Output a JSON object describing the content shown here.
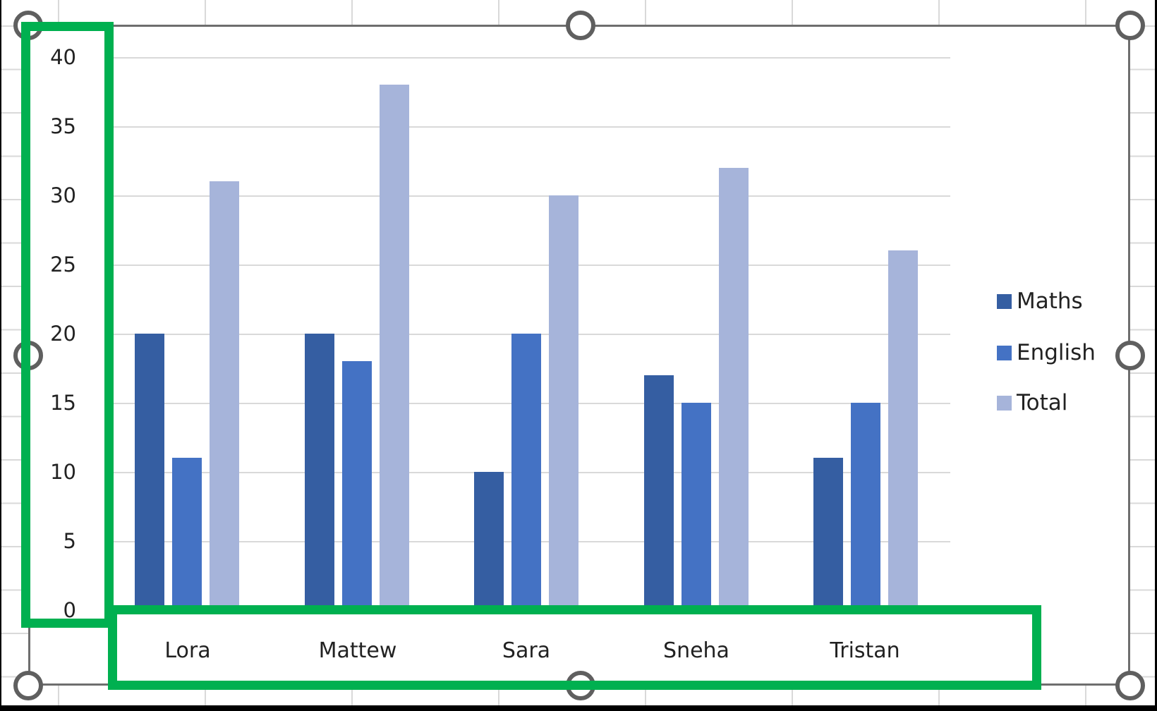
{
  "chart_data": {
    "type": "bar",
    "title": "",
    "xlabel": "",
    "ylabel": "",
    "categories": [
      "Lora",
      "Mattew",
      "Sara",
      "Sneha",
      "Tristan"
    ],
    "series": [
      {
        "name": "Maths",
        "color": "#355ea2",
        "values": [
          20,
          20,
          10,
          17,
          11
        ]
      },
      {
        "name": "English",
        "color": "#4472c4",
        "values": [
          11,
          18,
          20,
          15,
          15
        ]
      },
      {
        "name": "Total",
        "color": "#a6b4da",
        "values": [
          31,
          38,
          30,
          32,
          26
        ]
      }
    ],
    "ylim": [
      0,
      40
    ],
    "yticks": [
      0,
      5,
      10,
      15,
      20,
      25,
      30,
      35,
      40
    ],
    "grid": true,
    "legend_position": "right"
  },
  "yaxis": {
    "ticks": [
      "40",
      "35",
      "30",
      "25",
      "20",
      "15",
      "10",
      "5",
      "0"
    ]
  },
  "xaxis": {
    "labels": [
      "Lora",
      "Mattew",
      "Sara",
      "Sneha",
      "Tristan"
    ]
  },
  "legend": {
    "items": [
      {
        "label": "Maths",
        "color": "#355ea2"
      },
      {
        "label": "English",
        "color": "#4472c4"
      },
      {
        "label": "Total",
        "color": "#a6b4da"
      }
    ]
  },
  "highlight": {
    "color": "#00b050"
  }
}
